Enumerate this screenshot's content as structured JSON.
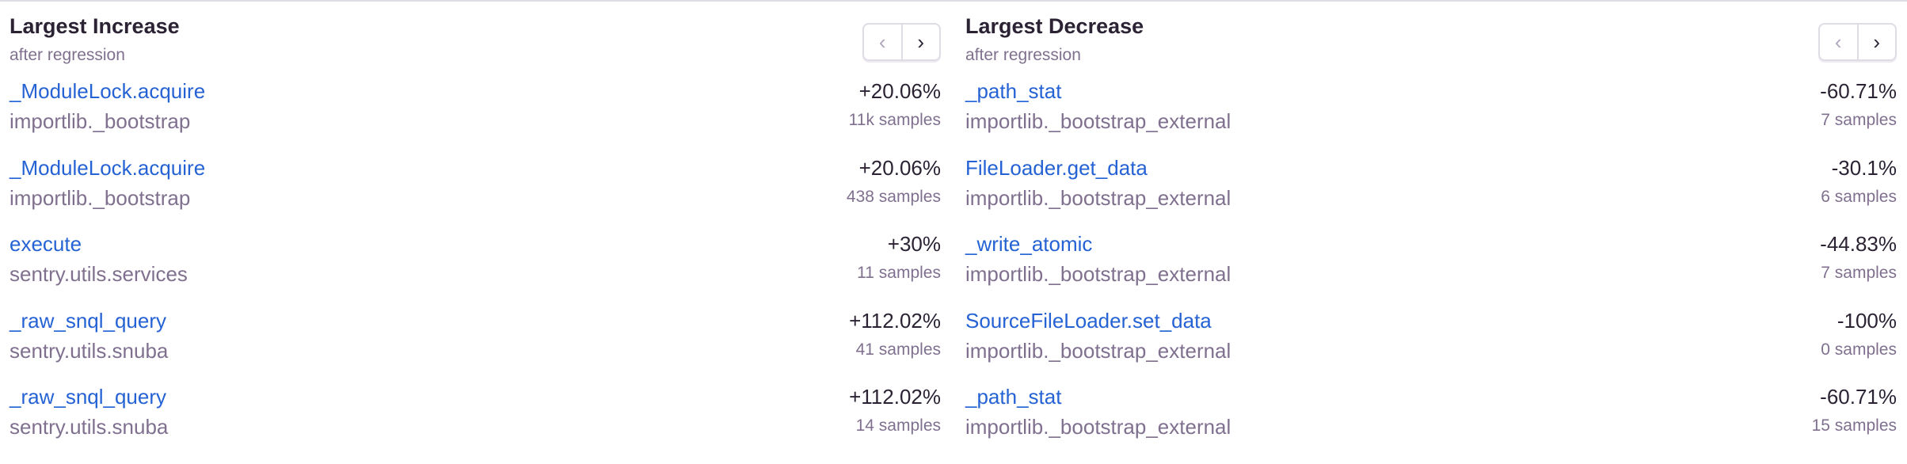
{
  "panels": [
    {
      "title": "Largest Increase",
      "subtitle": "after regression",
      "prev_icon": "chevron-left-icon",
      "next_icon": "chevron-right-icon",
      "rows": [
        {
          "function": "_ModuleLock.acquire",
          "module": "importlib._bootstrap",
          "change": "+20.06%",
          "samples": "11k samples"
        },
        {
          "function": "_ModuleLock.acquire",
          "module": "importlib._bootstrap",
          "change": "+20.06%",
          "samples": "438 samples"
        },
        {
          "function": "execute",
          "module": "sentry.utils.services",
          "change": "+30%",
          "samples": "11 samples"
        },
        {
          "function": "_raw_snql_query",
          "module": "sentry.utils.snuba",
          "change": "+112.02%",
          "samples": "41 samples"
        },
        {
          "function": "_raw_snql_query",
          "module": "sentry.utils.snuba",
          "change": "+112.02%",
          "samples": "14 samples"
        }
      ]
    },
    {
      "title": "Largest Decrease",
      "subtitle": "after regression",
      "prev_icon": "chevron-left-icon",
      "next_icon": "chevron-right-icon",
      "rows": [
        {
          "function": "_path_stat",
          "module": "importlib._bootstrap_external",
          "change": "-60.71%",
          "samples": "7 samples"
        },
        {
          "function": "FileLoader.get_data",
          "module": "importlib._bootstrap_external",
          "change": "-30.1%",
          "samples": "6 samples"
        },
        {
          "function": "_write_atomic",
          "module": "importlib._bootstrap_external",
          "change": "-44.83%",
          "samples": "7 samples"
        },
        {
          "function": "SourceFileLoader.set_data",
          "module": "importlib._bootstrap_external",
          "change": "-100%",
          "samples": "0 samples"
        },
        {
          "function": "_path_stat",
          "module": "importlib._bootstrap_external",
          "change": "-60.71%",
          "samples": "15 samples"
        }
      ]
    }
  ],
  "colors": {
    "link": "#2562d4",
    "text": "#2b2233",
    "muted": "#80708f",
    "border": "#e0dce5"
  }
}
